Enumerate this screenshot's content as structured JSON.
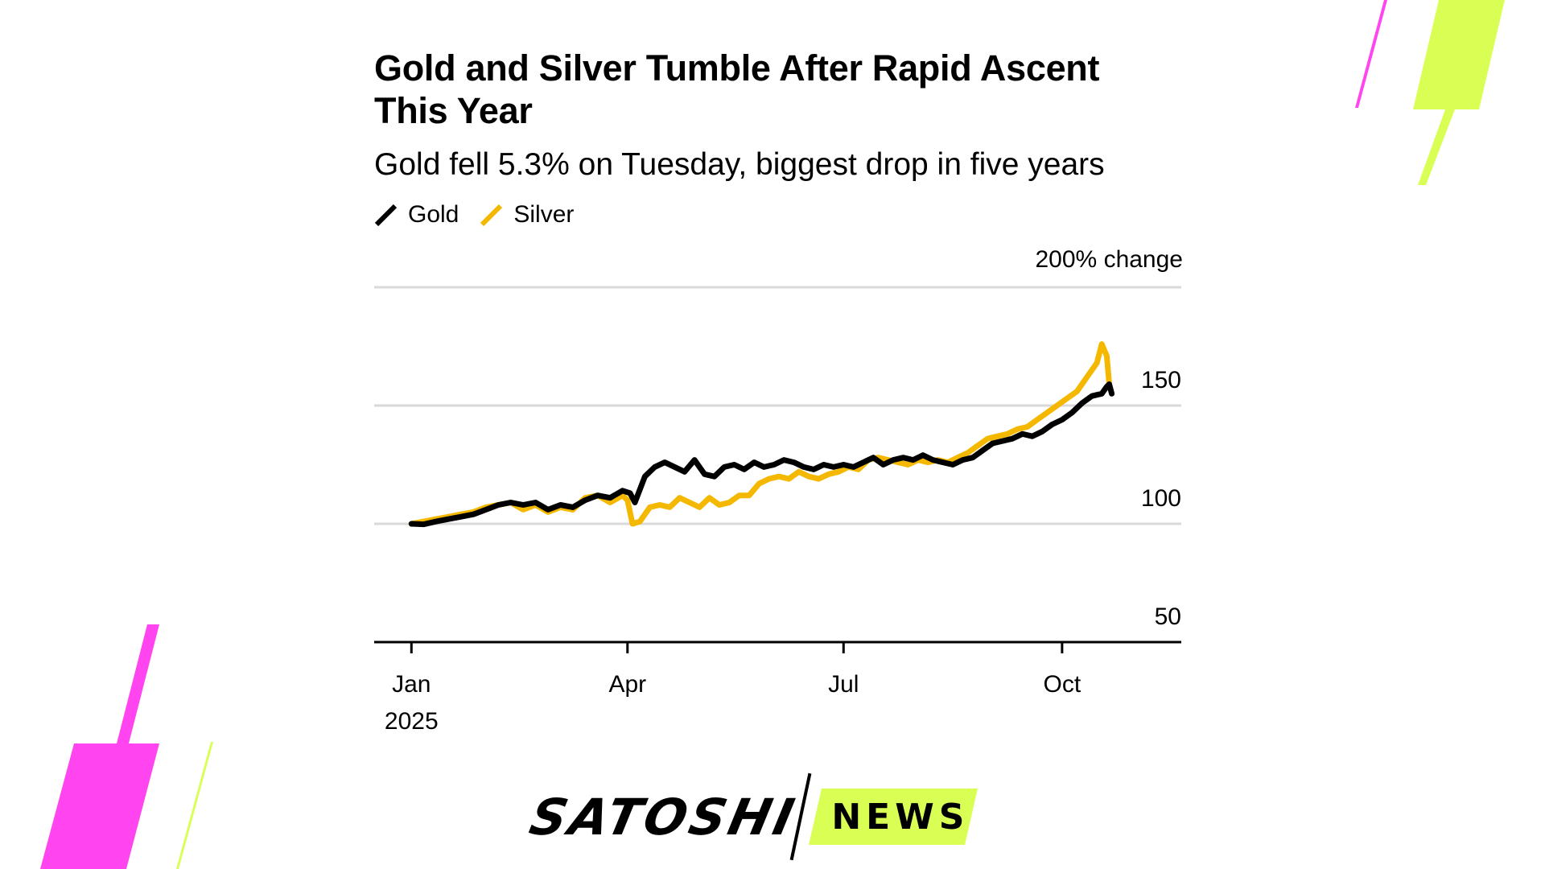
{
  "title": "Gold and Silver Tumble After Rapid Ascent This Year",
  "subtitle": "Gold fell 5.3% on Tuesday, biggest drop in five years",
  "legend": [
    {
      "label": "Gold",
      "color": "#000000"
    },
    {
      "label": "Silver",
      "color": "#F5B800"
    }
  ],
  "logo": {
    "word1": "SATOSHI",
    "word2": "NEWS"
  },
  "colors": {
    "gold": "#000000",
    "silver": "#F5B800",
    "grid": "#d9d9d9",
    "accent_pink": "#FF44F0",
    "accent_lime": "#D9FF55"
  },
  "chart_data": {
    "type": "line",
    "title": "Gold and Silver Tumble After Rapid Ascent This Year",
    "subtitle": "Gold fell 5.3% on Tuesday, biggest drop in five years",
    "ylabel": "200% change",
    "ylim": [
      50,
      200
    ],
    "yticks": [
      50,
      100,
      150
    ],
    "ytick_labels": [
      "50",
      "100",
      "150"
    ],
    "top_label": "200% change",
    "xlim_days": [
      -15,
      310
    ],
    "xticks": [
      {
        "day": 0,
        "label": "Jan",
        "sublabel": "2025"
      },
      {
        "day": 87,
        "label": "Apr",
        "sublabel": ""
      },
      {
        "day": 174,
        "label": "Jul",
        "sublabel": ""
      },
      {
        "day": 262,
        "label": "Oct",
        "sublabel": ""
      }
    ],
    "series": [
      {
        "name": "Gold",
        "color": "#000000",
        "x": [
          0,
          5,
          10,
          15,
          20,
          25,
          30,
          35,
          40,
          45,
          50,
          55,
          60,
          65,
          70,
          75,
          80,
          85,
          88,
          90,
          94,
          98,
          102,
          106,
          110,
          114,
          118,
          122,
          126,
          130,
          134,
          138,
          142,
          146,
          150,
          154,
          158,
          162,
          166,
          170,
          174,
          178,
          182,
          186,
          190,
          194,
          198,
          202,
          206,
          210,
          214,
          218,
          222,
          226,
          230,
          234,
          238,
          242,
          246,
          250,
          254,
          258,
          262,
          266,
          270,
          274,
          278,
          280,
          281,
          282
        ],
        "values": [
          100,
          99.8,
          101,
          102,
          103,
          104,
          106,
          108,
          109,
          108,
          109,
          106,
          108,
          107,
          110,
          112,
          111,
          114,
          113,
          109,
          120,
          124,
          126,
          124,
          122,
          127,
          121,
          120,
          124,
          125,
          123,
          126,
          124,
          125,
          127,
          126,
          124,
          123,
          125,
          124,
          125,
          124,
          126,
          128,
          125,
          127,
          128,
          127,
          129,
          127,
          126,
          125,
          127,
          128,
          131,
          134,
          135,
          136,
          138,
          137,
          139,
          142,
          144,
          147,
          151,
          154,
          155,
          158,
          159,
          155
        ]
      },
      {
        "name": "Silver",
        "color": "#F5B800",
        "x": [
          0,
          5,
          10,
          15,
          20,
          25,
          30,
          35,
          40,
          45,
          50,
          55,
          60,
          65,
          70,
          75,
          80,
          85,
          87,
          89,
          92,
          96,
          100,
          104,
          108,
          112,
          116,
          120,
          124,
          128,
          132,
          136,
          140,
          144,
          148,
          152,
          156,
          160,
          164,
          168,
          172,
          176,
          180,
          184,
          188,
          192,
          196,
          200,
          204,
          208,
          212,
          216,
          220,
          224,
          228,
          232,
          236,
          240,
          244,
          248,
          252,
          256,
          260,
          264,
          268,
          272,
          276,
          278,
          280,
          281
        ],
        "values": [
          100,
          101,
          102,
          103,
          104,
          105,
          107,
          108,
          109,
          106,
          108,
          105,
          107,
          106,
          111,
          112,
          109,
          112,
          110,
          100,
          101,
          107,
          108,
          107,
          111,
          109,
          107,
          111,
          108,
          109,
          112,
          112,
          117,
          119,
          120,
          119,
          122,
          120,
          119,
          121,
          122,
          124,
          123,
          127,
          128,
          127,
          126,
          125,
          127,
          126,
          127,
          126,
          128,
          130,
          133,
          136,
          137,
          138,
          140,
          141,
          144,
          147,
          150,
          153,
          156,
          162,
          168,
          176,
          171,
          159
        ]
      }
    ]
  }
}
